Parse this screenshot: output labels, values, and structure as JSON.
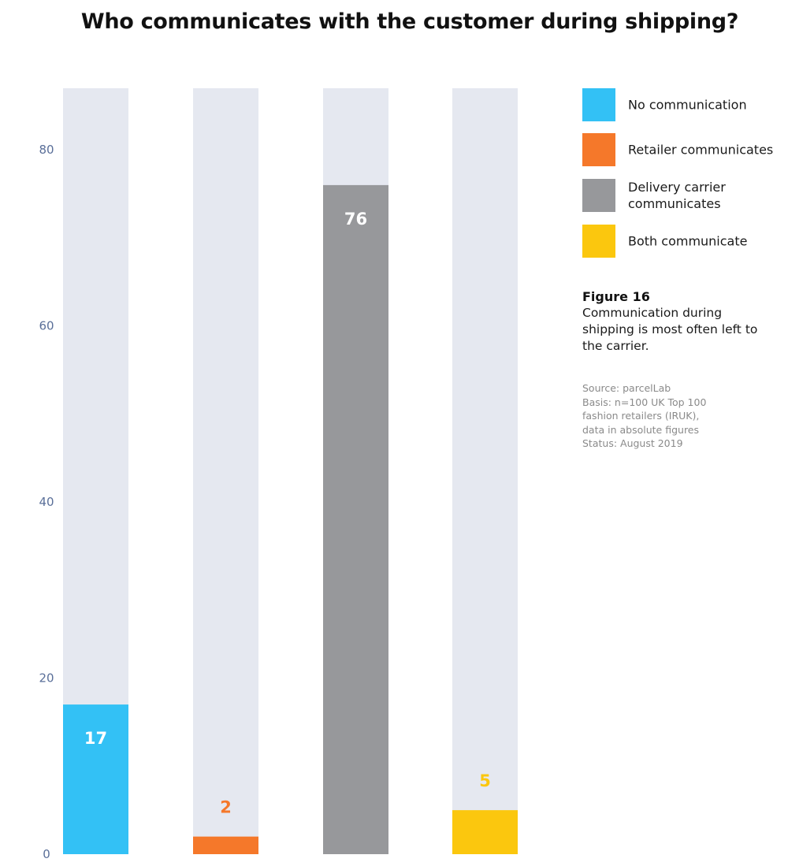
{
  "chart_data": {
    "type": "bar",
    "title": "Who communicates with the customer during shipping?",
    "categories": [
      "No communication",
      "Retailer communicates",
      "Delivery carrier communicates",
      "Both communicate"
    ],
    "values": [
      17,
      2,
      76,
      5
    ],
    "colors": [
      "#33c1f5",
      "#f5782a",
      "#97989b",
      "#fbc70e"
    ],
    "background_color": "#e5e8f0",
    "data_label_colors": [
      "#ffffff",
      "#f5782a",
      "#ffffff",
      "#fbc70e"
    ],
    "ylim": [
      0,
      87
    ],
    "yticks": [
      0,
      20,
      40,
      60,
      80
    ],
    "xlabel": "",
    "ylabel": "",
    "grid": false
  },
  "legend": [
    {
      "label": "No communication",
      "color": "#33c1f5"
    },
    {
      "label": "Retailer communicates",
      "color": "#f5782a"
    },
    {
      "label": "Delivery carrier communicates",
      "color": "#97989b"
    },
    {
      "label": "Both communicate",
      "color": "#fbc70e"
    }
  ],
  "figure": {
    "number": "Figure 16",
    "caption": "Communication during shipping is most often left to the carrier."
  },
  "source": {
    "lines": [
      "Source: parcelLab",
      "Basis: n=100 UK Top 100",
      "fashion retailers (IRUK),",
      "data in absolute figures",
      "Status: August 2019"
    ]
  }
}
